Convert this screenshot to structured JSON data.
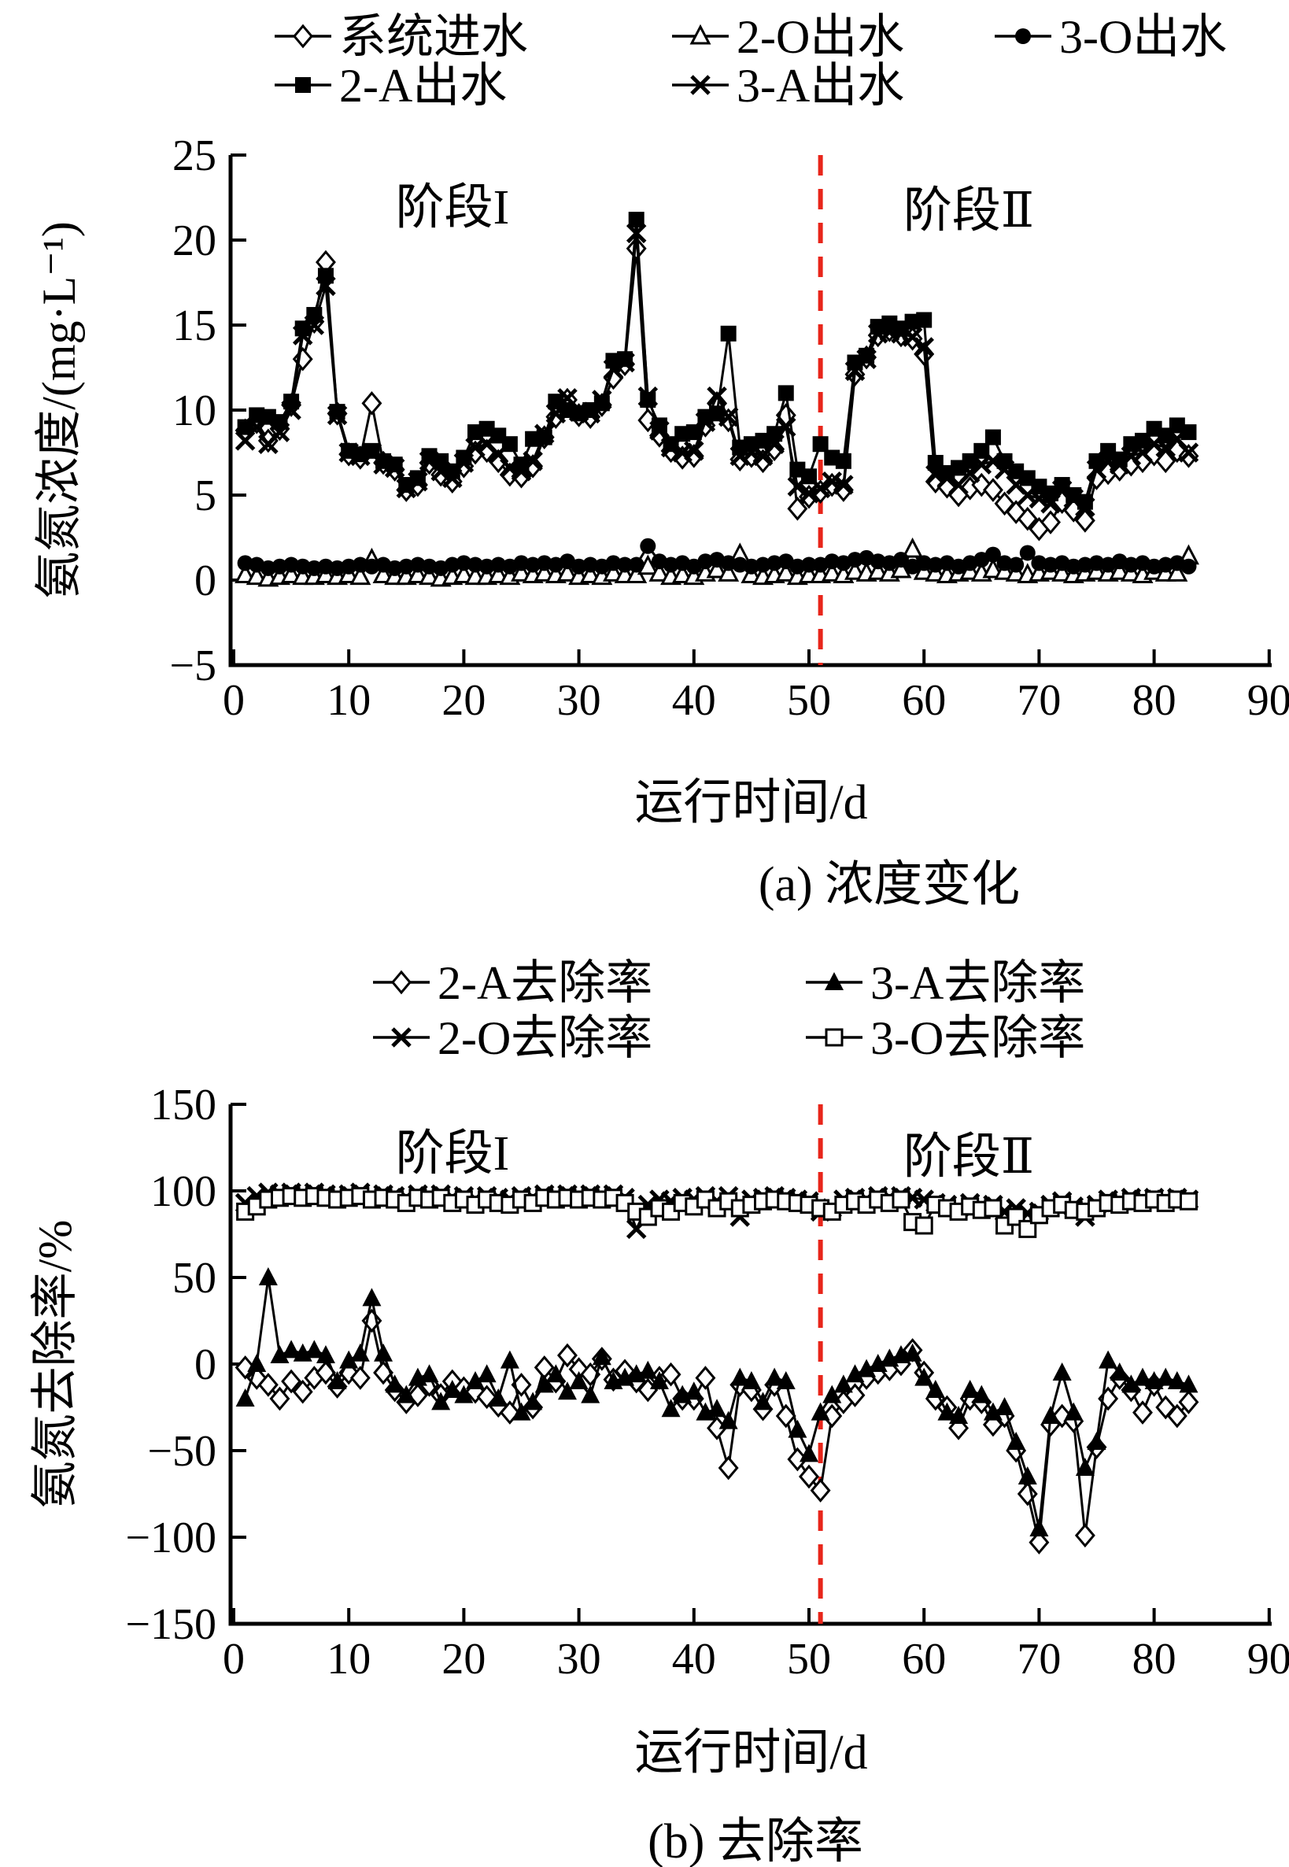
{
  "page": {
    "background": "#ffffff",
    "ink": "#000000",
    "accent_red": "#e8251a"
  },
  "panel_a": {
    "caption": "(a) 浓度变化",
    "xlabel": "运行时间/d",
    "ylabel": "氨氮浓度/(mg·L⁻¹)",
    "stage1": "阶段I",
    "stage2": "阶段Ⅱ"
  },
  "panel_b": {
    "caption": "(b) 去除率",
    "xlabel": "运行时间/d",
    "ylabel": "氨氮去除率/%",
    "stage1": "阶段I",
    "stage2": "阶段Ⅱ"
  },
  "chart_data": [
    {
      "id": "a",
      "type": "line",
      "title": "(a) 浓度变化",
      "xlabel": "运行时间/d",
      "ylabel": "氨氮浓度/(mg·L⁻¹)",
      "xlim": [
        0,
        90
      ],
      "ylim": [
        -5,
        25
      ],
      "xticks": [
        0,
        10,
        20,
        30,
        40,
        50,
        60,
        70,
        80,
        90
      ],
      "yticks": [
        -5,
        0,
        5,
        10,
        15,
        20,
        25
      ],
      "grid": false,
      "legend_position": "top",
      "stage_divider_day": 51,
      "stage1": "阶段I",
      "stage2": "阶段Ⅱ",
      "x": [
        1,
        2,
        3,
        4,
        5,
        6,
        7,
        8,
        9,
        10,
        11,
        12,
        13,
        14,
        15,
        16,
        17,
        18,
        19,
        20,
        21,
        22,
        23,
        24,
        25,
        26,
        27,
        28,
        29,
        30,
        31,
        32,
        33,
        34,
        35,
        36,
        37,
        38,
        39,
        40,
        41,
        42,
        43,
        44,
        45,
        46,
        47,
        48,
        49,
        50,
        51,
        52,
        53,
        54,
        55,
        56,
        57,
        58,
        59,
        60,
        61,
        62,
        63,
        64,
        65,
        66,
        67,
        68,
        69,
        70,
        71,
        72,
        73,
        74,
        75,
        76,
        77,
        78,
        79,
        80,
        81,
        82,
        83
      ],
      "series": [
        {
          "id": "influent",
          "name": "系统进水",
          "marker": "open-diamond",
          "legend": [
            0,
            0
          ],
          "values": [
            8.8,
            9.3,
            8.2,
            8.9,
            10.3,
            13.0,
            15.2,
            18.7,
            9.8,
            7.4,
            7.2,
            10.4,
            6.9,
            6.5,
            5.3,
            5.6,
            6.9,
            6.2,
            5.8,
            6.7,
            7.5,
            7.6,
            7.0,
            6.2,
            6.1,
            6.7,
            8.4,
            9.6,
            10.6,
            9.7,
            9.6,
            10.3,
            11.9,
            12.7,
            19.5,
            9.4,
            8.5,
            7.6,
            7.2,
            7.3,
            9.1,
            10.4,
            9.4,
            7.1,
            7.3,
            7.0,
            7.7,
            9.7,
            4.2,
            4.9,
            5.2,
            5.6,
            5.3,
            12.1,
            13.1,
            14.4,
            14.7,
            14.4,
            14.2,
            13.3,
            5.8,
            5.5,
            5.0,
            5.4,
            5.6,
            5.3,
            4.5,
            4.0,
            3.6,
            3.0,
            3.4,
            4.6,
            4.1,
            3.5,
            6.0,
            6.3,
            6.5,
            6.8,
            7.0,
            7.4,
            7.0,
            7.6,
            7.3
          ]
        },
        {
          "id": "effluent-2o",
          "name": "2-O出水",
          "marker": "open-triangle",
          "legend": [
            0,
            1
          ],
          "values": [
            0.3,
            0.2,
            0.1,
            0.2,
            0.3,
            0.2,
            0.2,
            0.3,
            0.2,
            0.3,
            0.2,
            1.2,
            0.3,
            0.2,
            0.2,
            0.3,
            0.2,
            0.1,
            0.2,
            0.3,
            0.2,
            0.2,
            0.3,
            0.2,
            0.4,
            0.3,
            0.4,
            0.3,
            0.4,
            0.2,
            0.3,
            0.2,
            0.4,
            0.3,
            0.3,
            0.8,
            0.4,
            0.2,
            0.3,
            0.2,
            0.4,
            0.6,
            0.4,
            1.5,
            0.3,
            0.2,
            0.3,
            0.4,
            0.2,
            0.3,
            0.3,
            0.4,
            0.3,
            0.5,
            0.4,
            0.5,
            0.4,
            0.6,
            1.8,
            0.5,
            0.4,
            0.3,
            0.4,
            0.5,
            0.4,
            0.6,
            0.5,
            0.4,
            0.3,
            0.4,
            0.5,
            0.4,
            0.3,
            0.4,
            0.5,
            0.4,
            0.5,
            0.4,
            0.3,
            0.5,
            0.4,
            0.4,
            1.4
          ]
        },
        {
          "id": "effluent-3o",
          "name": "3-O出水",
          "marker": "filled-circle",
          "legend": [
            0,
            2
          ],
          "values": [
            1.0,
            0.9,
            0.7,
            0.8,
            0.9,
            0.8,
            0.7,
            0.8,
            0.7,
            0.8,
            0.9,
            0.8,
            0.9,
            0.7,
            0.8,
            0.9,
            0.8,
            0.7,
            0.9,
            1.0,
            0.9,
            0.8,
            0.9,
            0.8,
            1.0,
            0.9,
            1.0,
            0.9,
            1.1,
            0.8,
            0.9,
            0.8,
            1.0,
            0.9,
            0.9,
            2.0,
            1.1,
            0.9,
            1.0,
            0.8,
            1.1,
            1.2,
            1.0,
            0.9,
            0.8,
            0.9,
            1.0,
            1.1,
            0.8,
            0.9,
            0.9,
            1.1,
            1.0,
            1.2,
            1.3,
            1.1,
            1.0,
            1.2,
            0.8,
            1.0,
            0.9,
            1.0,
            0.8,
            1.0,
            1.2,
            1.5,
            1.0,
            0.9,
            1.6,
            1.0,
            0.9,
            1.0,
            0.8,
            0.9,
            1.0,
            0.9,
            1.1,
            0.9,
            1.0,
            0.8,
            0.9,
            1.0,
            0.8
          ]
        },
        {
          "id": "effluent-2a",
          "name": "2-A出水",
          "marker": "filled-square",
          "legend": [
            1,
            0
          ],
          "values": [
            9.0,
            9.7,
            9.6,
            9.3,
            10.5,
            14.8,
            15.6,
            17.9,
            9.9,
            7.6,
            7.4,
            7.6,
            7.0,
            6.8,
            5.6,
            6.0,
            7.3,
            7.0,
            6.4,
            7.2,
            8.7,
            8.9,
            8.5,
            8.0,
            6.8,
            8.3,
            8.4,
            10.5,
            10.0,
            9.8,
            10.0,
            10.4,
            12.9,
            13.0,
            21.2,
            10.6,
            9.1,
            8.0,
            8.6,
            8.7,
            9.6,
            9.8,
            14.5,
            7.8,
            8.0,
            8.2,
            8.6,
            11.0,
            6.5,
            6.1,
            8.0,
            7.2,
            7.0,
            12.8,
            13.2,
            14.9,
            15.1,
            14.8,
            15.2,
            15.3,
            6.9,
            6.3,
            6.6,
            7.0,
            7.6,
            8.4,
            7.0,
            6.4,
            6.0,
            5.5,
            5.1,
            5.6,
            5.0,
            4.6,
            7.0,
            7.6,
            7.1,
            8.0,
            8.2,
            8.9,
            8.5,
            9.1,
            8.7
          ]
        },
        {
          "id": "effluent-3a",
          "name": "3-A出水",
          "marker": "x-cross",
          "legend": [
            1,
            1
          ],
          "values": [
            8.2,
            9.0,
            8.0,
            8.7,
            10.0,
            14.4,
            15.0,
            17.3,
            9.7,
            7.5,
            7.3,
            7.5,
            6.8,
            6.6,
            5.4,
            5.8,
            7.0,
            6.4,
            6.0,
            6.9,
            7.8,
            8.0,
            7.4,
            6.6,
            6.4,
            7.0,
            8.6,
            9.8,
            10.7,
            9.9,
            9.8,
            10.6,
            12.4,
            12.8,
            20.4,
            10.8,
            8.8,
            7.8,
            7.5,
            7.6,
            9.3,
            10.8,
            9.6,
            7.3,
            7.5,
            7.3,
            8.0,
            9.0,
            5.5,
            5.1,
            5.4,
            5.8,
            5.6,
            12.3,
            13.0,
            14.5,
            14.6,
            14.5,
            14.3,
            13.7,
            6.2,
            6.0,
            5.6,
            6.3,
            6.8,
            7.0,
            6.5,
            5.6,
            5.0,
            4.8,
            4.5,
            5.3,
            4.8,
            4.3,
            6.5,
            7.0,
            6.8,
            7.3,
            7.5,
            8.0,
            7.8,
            8.3,
            7.5
          ]
        }
      ]
    },
    {
      "id": "b",
      "type": "line",
      "title": "(b) 去除率",
      "xlabel": "运行时间/d",
      "ylabel": "氨氮去除率/%",
      "xlim": [
        0,
        90
      ],
      "ylim": [
        -150,
        150
      ],
      "xticks": [
        0,
        10,
        20,
        30,
        40,
        50,
        60,
        70,
        80,
        90
      ],
      "yticks": [
        -150,
        -100,
        -50,
        0,
        50,
        100,
        150
      ],
      "grid": false,
      "legend_position": "top",
      "stage_divider_day": 51,
      "stage1": "阶段I",
      "stage2": "阶段Ⅱ",
      "x": [
        1,
        2,
        3,
        4,
        5,
        6,
        7,
        8,
        9,
        10,
        11,
        12,
        13,
        14,
        15,
        16,
        17,
        18,
        19,
        20,
        21,
        22,
        23,
        24,
        25,
        26,
        27,
        28,
        29,
        30,
        31,
        32,
        33,
        34,
        35,
        36,
        37,
        38,
        39,
        40,
        41,
        42,
        43,
        44,
        45,
        46,
        47,
        48,
        49,
        50,
        51,
        52,
        53,
        54,
        55,
        56,
        57,
        58,
        59,
        60,
        61,
        62,
        63,
        64,
        65,
        66,
        67,
        68,
        69,
        70,
        71,
        72,
        73,
        74,
        75,
        76,
        77,
        78,
        79,
        80,
        81,
        82,
        83
      ],
      "series": [
        {
          "id": "removal-2a",
          "name": "2-A去除率",
          "marker": "open-diamond",
          "legend": [
            0,
            0
          ],
          "values": [
            -2,
            -8,
            -12,
            -20,
            -10,
            -16,
            -8,
            -5,
            -13,
            -5,
            -8,
            25,
            -5,
            -15,
            -22,
            -18,
            -12,
            -18,
            -10,
            -14,
            -16,
            -19,
            -24,
            -28,
            -12,
            -25,
            -2,
            -10,
            5,
            -3,
            -6,
            3,
            -9,
            -4,
            -10,
            -15,
            -8,
            -6,
            -20,
            -20,
            -8,
            -37,
            -60,
            -12,
            -15,
            -26,
            -12,
            -30,
            -55,
            -65,
            -73,
            -30,
            -22,
            -18,
            -8,
            -5,
            -3,
            0,
            8,
            -5,
            -20,
            -25,
            -37,
            -20,
            -22,
            -35,
            -30,
            -50,
            -75,
            -103,
            -35,
            -30,
            -33,
            -99,
            -48,
            -20,
            -8,
            -15,
            -28,
            -12,
            -25,
            -30,
            -22
          ]
        },
        {
          "id": "removal-3a",
          "name": "3-A去除率",
          "marker": "filled-triangle",
          "legend": [
            0,
            1
          ],
          "values": [
            -20,
            0,
            50,
            5,
            8,
            6,
            8,
            5,
            -10,
            2,
            6,
            38,
            6,
            -12,
            -18,
            -8,
            -6,
            -22,
            -15,
            -18,
            -10,
            -6,
            -20,
            2,
            -28,
            -22,
            -12,
            -6,
            -16,
            -10,
            -18,
            4,
            -10,
            -8,
            -6,
            -4,
            -10,
            -26,
            -18,
            -16,
            -28,
            -26,
            -33,
            -8,
            -10,
            -22,
            -8,
            -10,
            -38,
            -52,
            -28,
            -18,
            -12,
            -6,
            -3,
            0,
            3,
            5,
            6,
            -8,
            -15,
            -28,
            -30,
            -15,
            -18,
            -28,
            -25,
            -45,
            -65,
            -95,
            -30,
            -5,
            -28,
            -60,
            -45,
            2,
            -5,
            -12,
            -8,
            -10,
            -8,
            -10,
            -12
          ]
        },
        {
          "id": "removal-2o",
          "name": "2-O去除率",
          "marker": "x-cross",
          "legend": [
            1,
            0
          ],
          "values": [
            93,
            97,
            99,
            98,
            99,
            98,
            99,
            98,
            97,
            98,
            99,
            97,
            98,
            97,
            96,
            98,
            97,
            98,
            96,
            97,
            95,
            97,
            96,
            95,
            97,
            96,
            98,
            97,
            98,
            97,
            98,
            97,
            98,
            96,
            78,
            92,
            95,
            94,
            96,
            95,
            97,
            94,
            97,
            85,
            95,
            96,
            97,
            96,
            95,
            94,
            88,
            90,
            95,
            96,
            95,
            97,
            96,
            97,
            96,
            95,
            93,
            92,
            90,
            93,
            91,
            92,
            88,
            90,
            87,
            88,
            92,
            94,
            91,
            85,
            92,
            95,
            94,
            96,
            95,
            96,
            95,
            96,
            95
          ]
        },
        {
          "id": "removal-3o",
          "name": "3-O去除率",
          "marker": "open-square",
          "legend": [
            1,
            1
          ],
          "values": [
            88,
            91,
            95,
            96,
            97,
            96,
            97,
            96,
            95,
            96,
            97,
            95,
            96,
            95,
            93,
            96,
            95,
            96,
            93,
            95,
            92,
            95,
            93,
            92,
            95,
            93,
            96,
            95,
            96,
            95,
            96,
            95,
            96,
            93,
            88,
            85,
            90,
            88,
            93,
            91,
            95,
            90,
            94,
            90,
            92,
            94,
            95,
            94,
            93,
            92,
            90,
            88,
            92,
            94,
            92,
            95,
            93,
            95,
            82,
            80,
            92,
            90,
            88,
            91,
            89,
            90,
            80,
            85,
            78,
            86,
            90,
            92,
            89,
            88,
            90,
            93,
            92,
            94,
            93,
            95,
            93,
            95,
            94
          ]
        }
      ]
    }
  ]
}
